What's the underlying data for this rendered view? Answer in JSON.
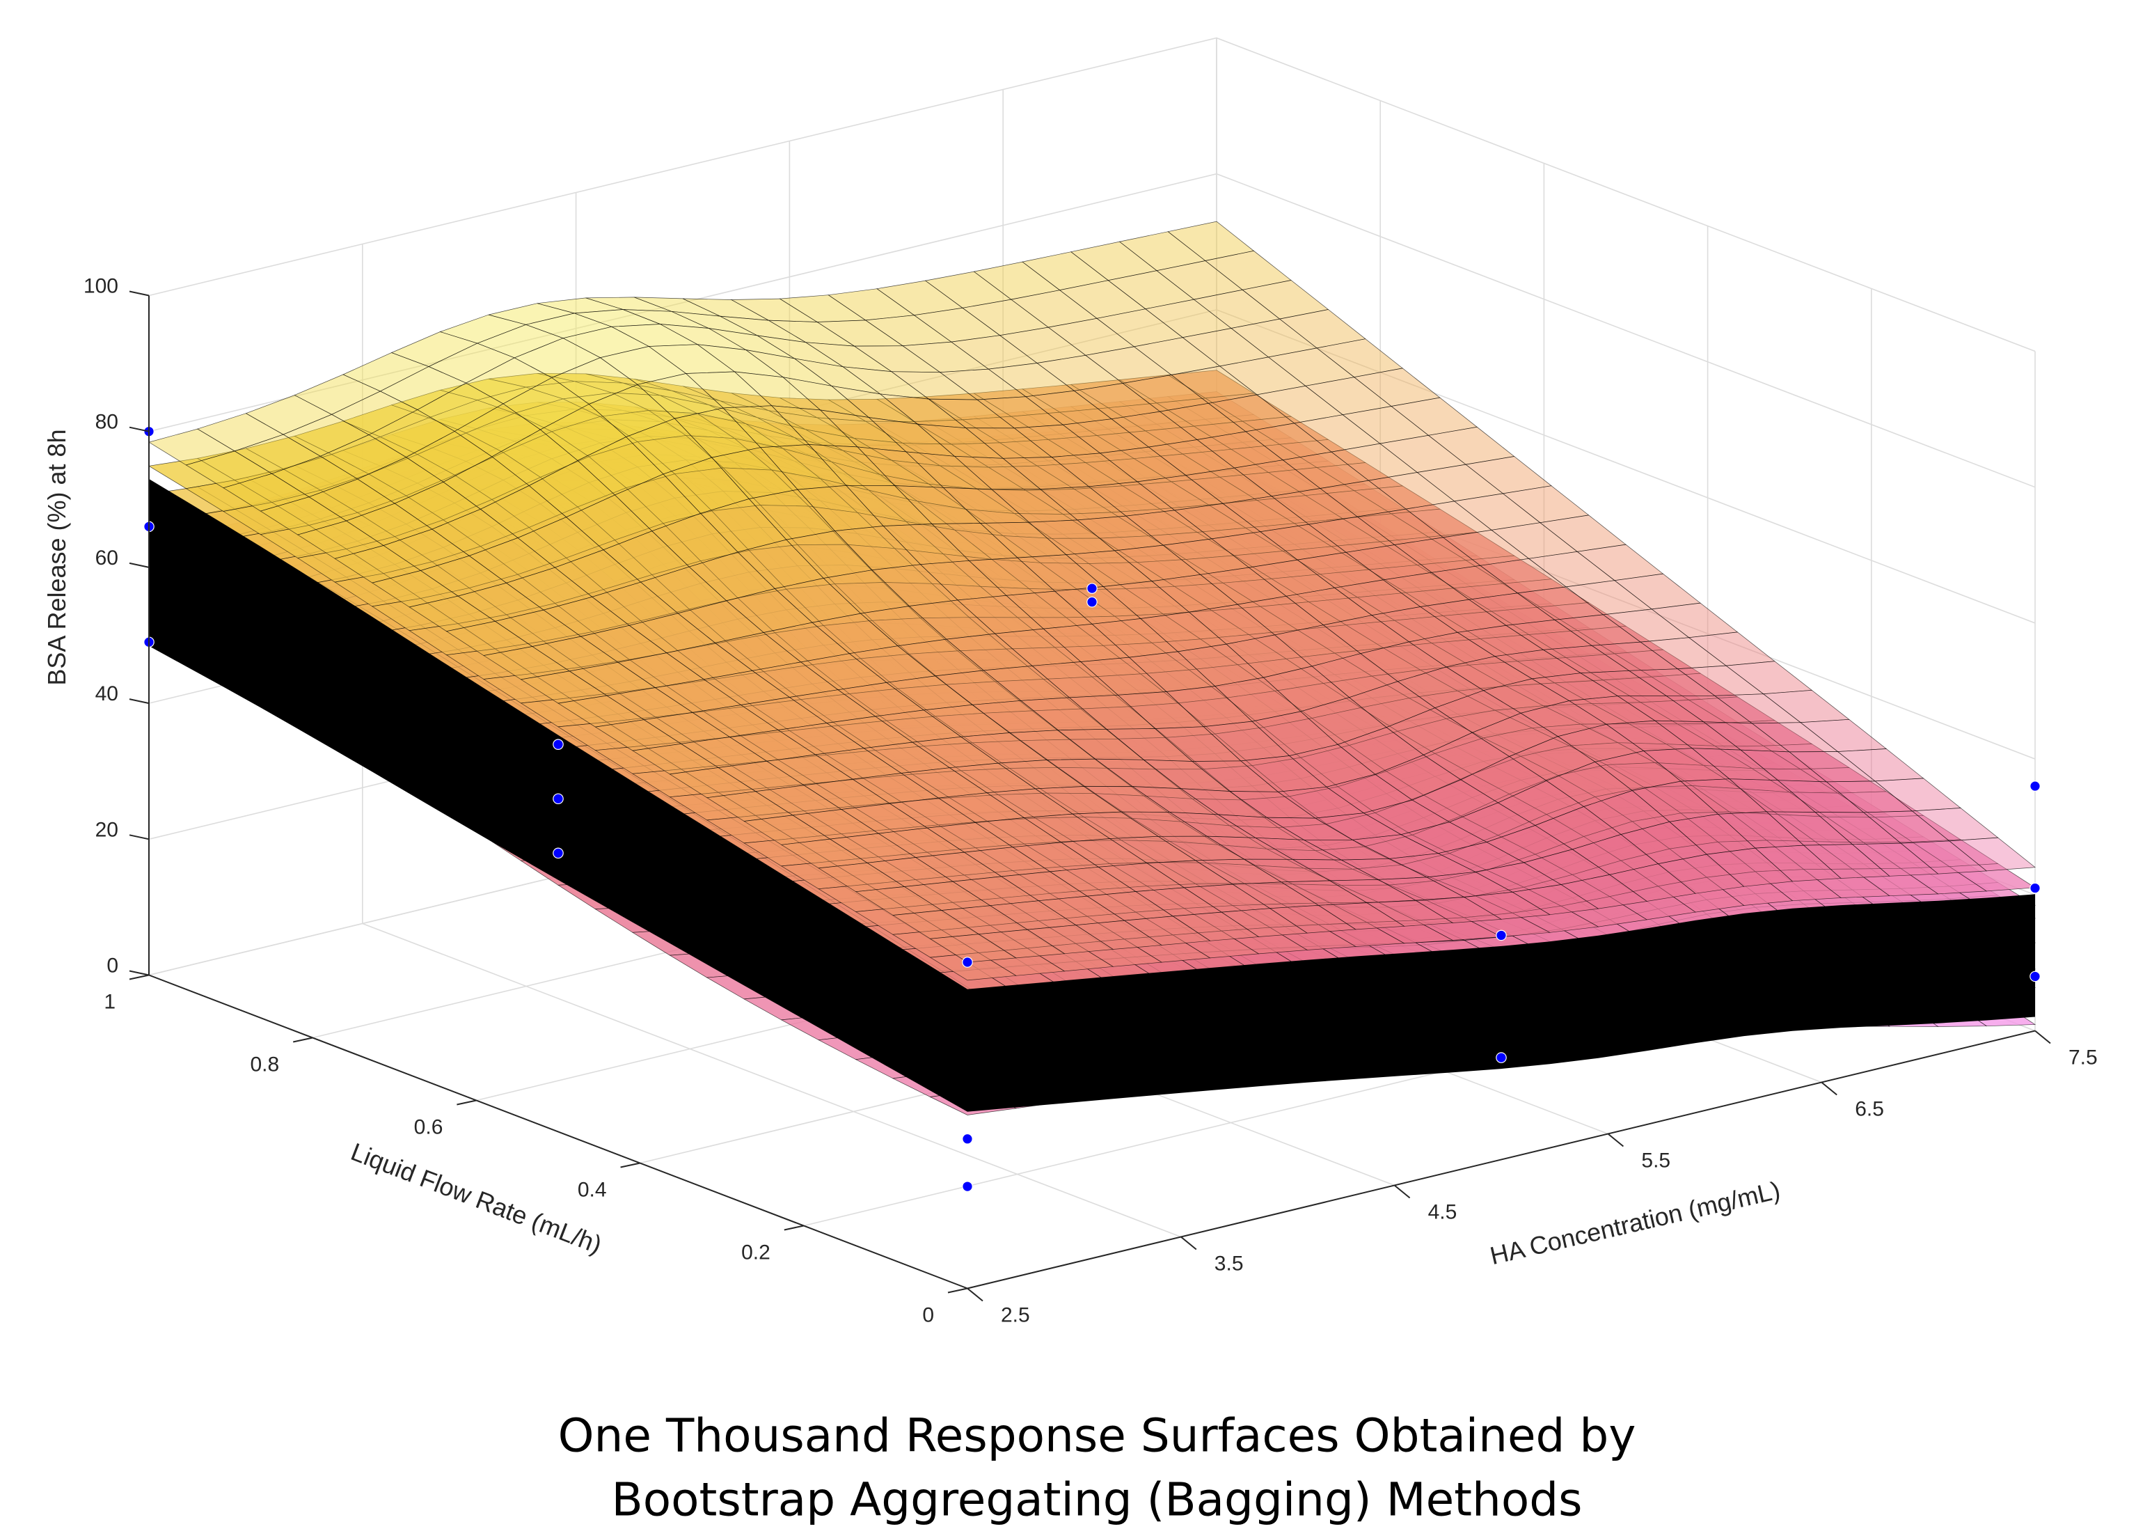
{
  "chart_data": {
    "type": "surface",
    "title": [
      "One Thousand Response Surfaces Obtained by",
      "Bootstrap Aggregating (Bagging) Methods"
    ],
    "xlabel": "HA Concentration (mg/mL)",
    "ylabel": "Liquid Flow Rate (mL/h)",
    "zlabel": "BSA Release (%) at 8h",
    "xlim": [
      2.5,
      7.5
    ],
    "ylim": [
      0,
      1
    ],
    "zlim": [
      0,
      100
    ],
    "xticks": [
      "2.5",
      "3.5",
      "4.5",
      "5.5",
      "6.5",
      "7.5"
    ],
    "yticks": [
      "0",
      "0.2",
      "0.4",
      "0.6",
      "0.8",
      "1"
    ],
    "zticks": [
      "0",
      "20",
      "40",
      "60",
      "80",
      "100"
    ],
    "grid": true,
    "surface_colormap": [
      "#f59ae8",
      "#e8708a",
      "#f0a060",
      "#f0d040",
      "#f5f060"
    ],
    "point_color": "#0000ff",
    "observed_points": [
      {
        "ha": 2.5,
        "flow": 1.0,
        "release": 80
      },
      {
        "ha": 2.5,
        "flow": 1.0,
        "release": 66
      },
      {
        "ha": 2.5,
        "flow": 1.0,
        "release": 49
      },
      {
        "ha": 2.5,
        "flow": 0.5,
        "release": 57
      },
      {
        "ha": 2.5,
        "flow": 0.5,
        "release": 49
      },
      {
        "ha": 2.5,
        "flow": 0.5,
        "release": 41
      },
      {
        "ha": 5.0,
        "flow": 0.5,
        "release": 61
      },
      {
        "ha": 5.0,
        "flow": 0.5,
        "release": 59
      },
      {
        "ha": 2.5,
        "flow": 0.0,
        "release": 48
      },
      {
        "ha": 2.5,
        "flow": 0.0,
        "release": 22
      },
      {
        "ha": 2.5,
        "flow": 0.0,
        "release": 15
      },
      {
        "ha": 5.0,
        "flow": 0.0,
        "release": 33
      },
      {
        "ha": 5.0,
        "flow": 0.0,
        "release": 15
      },
      {
        "ha": 7.5,
        "flow": 0.0,
        "release": 36
      },
      {
        "ha": 7.5,
        "flow": 0.0,
        "release": 21
      },
      {
        "ha": 7.5,
        "flow": 0.0,
        "release": 8
      }
    ]
  }
}
